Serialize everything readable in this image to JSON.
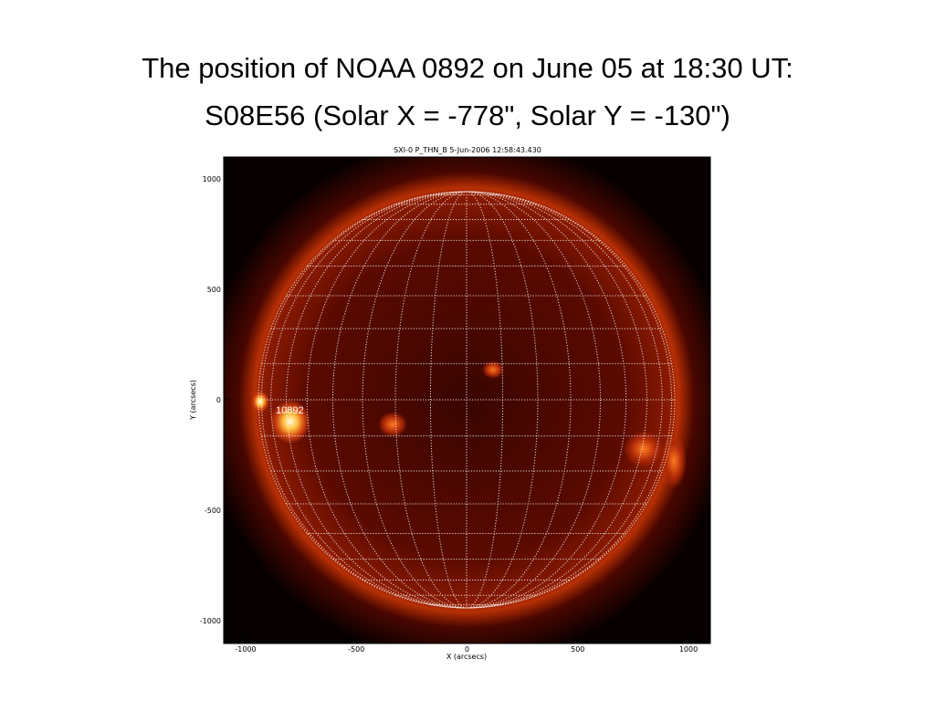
{
  "slide": {
    "title": [
      "The position of NOAA 0892 on June 05 at 18:30 UT:",
      "S08E56 (Solar X = -778\", Solar Y = -130\")"
    ],
    "image": {
      "caption": "SXI-0 P_THN_B  5-Jun-2006 12:58:43.430",
      "region_label": "10892",
      "x_axis_label": "X (arcsecs)",
      "y_axis_label": "Y (arcsecs)",
      "xticks": [
        "-1000",
        "-500",
        "0",
        "500",
        "1000"
      ],
      "yticks": [
        "1000",
        "500",
        "0",
        "-500",
        "-1000"
      ]
    }
  }
}
